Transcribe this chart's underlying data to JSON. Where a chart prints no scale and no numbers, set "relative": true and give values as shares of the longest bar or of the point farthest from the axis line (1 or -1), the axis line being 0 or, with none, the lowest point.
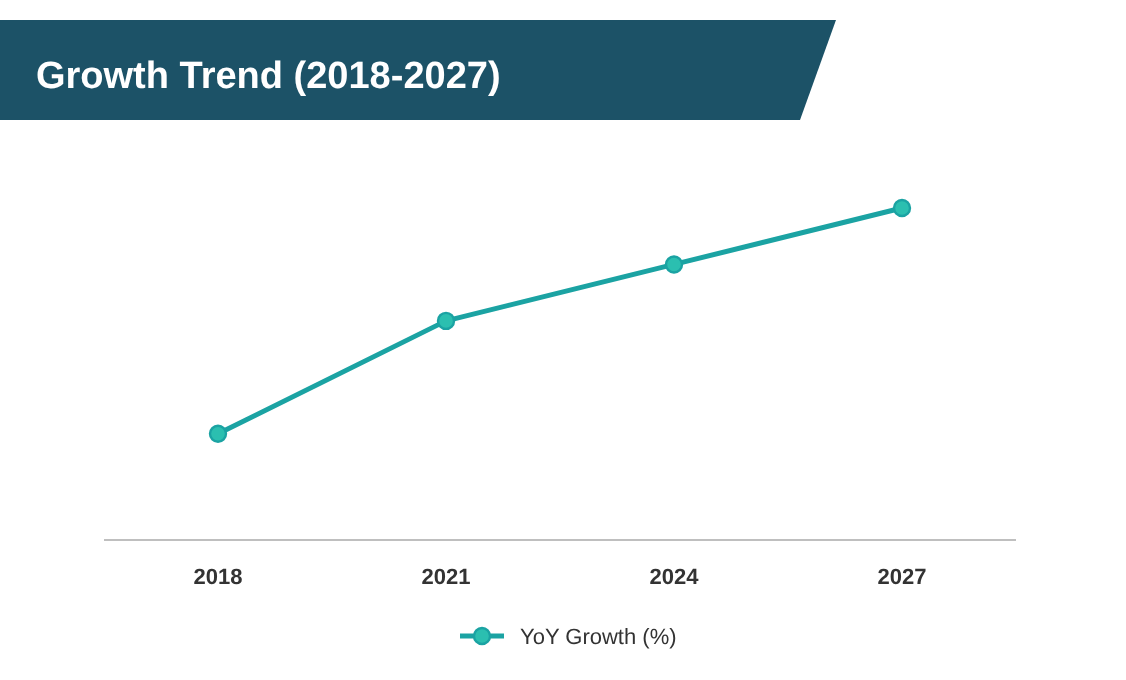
{
  "chart_data": {
    "type": "line",
    "title": "Growth Trend (2018-2027)",
    "relative": true,
    "categories": [
      "2018",
      "2021",
      "2024",
      "2027"
    ],
    "series": [
      {
        "name": "YoY Growth (%)",
        "color": "#1ba3a3",
        "values": [
          0.32,
          0.66,
          0.83,
          1
        ]
      }
    ],
    "marker": "circle",
    "legend": "bottom",
    "grid": false
  }
}
